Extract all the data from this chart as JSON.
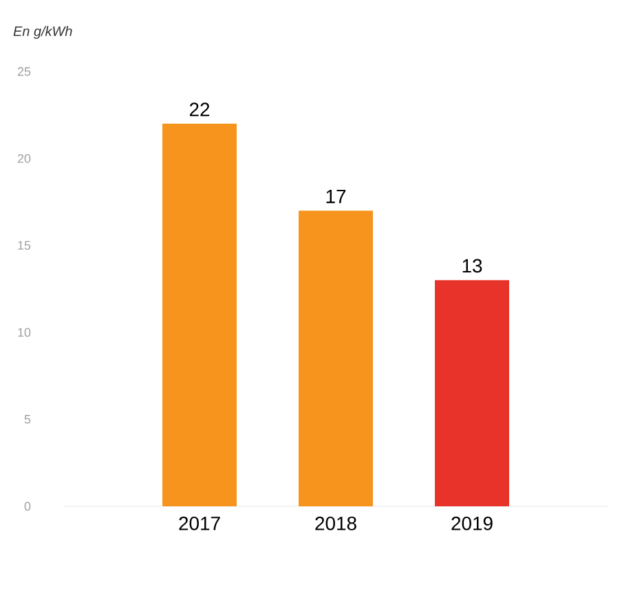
{
  "chart_data": {
    "type": "bar",
    "ylabel": "En g/kWh",
    "categories": [
      "2017",
      "2018",
      "2019"
    ],
    "values": [
      22,
      17,
      13
    ],
    "colors": [
      "#f7941d",
      "#f7941d",
      "#e8332a"
    ],
    "ylim": [
      0,
      25
    ],
    "yticks": [
      0,
      5,
      10,
      15,
      20,
      25
    ],
    "data_labels": true
  }
}
